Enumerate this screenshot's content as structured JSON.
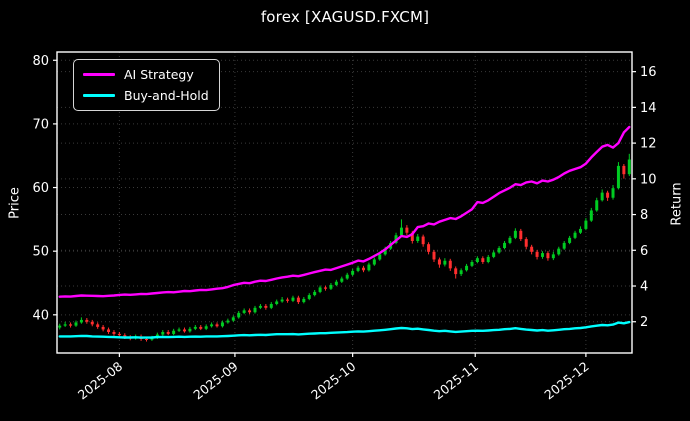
{
  "title": "forex [XAGUSD.FXCM]",
  "legend": {
    "items": [
      {
        "label": "AI Strategy",
        "color": "#ff00ff"
      },
      {
        "label": "Buy-and-Hold",
        "color": "#00ffff"
      }
    ]
  },
  "axes": {
    "left_label": "Price",
    "right_label": "Return"
  },
  "chart_data": {
    "type": "candlestick",
    "title": "forex [XAGUSD.FXCM]",
    "grid": true,
    "legend_position": "upper-left",
    "price_axis": {
      "label": "Price",
      "min": 34.0,
      "max": 81.3,
      "ticks": [
        40,
        50,
        60,
        70,
        80
      ]
    },
    "return_axis": {
      "label": "Return",
      "min": 0.25,
      "max": 17.1,
      "ticks": [
        2,
        4,
        6,
        8,
        10,
        12,
        14,
        16
      ]
    },
    "x_ticks": [
      {
        "label": "2025-08",
        "day": 11
      },
      {
        "label": "2025-09",
        "day": 32.3
      },
      {
        "label": "2025-10",
        "day": 54
      },
      {
        "label": "2025-11",
        "day": 76.6
      },
      {
        "label": "2025-12",
        "day": 97
      }
    ],
    "colors": {
      "up": "#00cc22",
      "down": "#ff2e2e",
      "ai": "#ff00ff",
      "buy_hold": "#00ffff",
      "grid": "#3a3a3a",
      "background": "#000000",
      "foreground": "#ffffff"
    },
    "candles": [
      [
        38.0,
        38.6,
        37.7,
        38.3
      ],
      [
        38.3,
        38.9,
        38.1,
        38.5
      ],
      [
        38.5,
        38.8,
        38.0,
        38.3
      ],
      [
        38.3,
        39.1,
        38.1,
        38.8
      ],
      [
        38.8,
        39.6,
        38.6,
        39.2
      ],
      [
        39.2,
        39.5,
        38.6,
        38.9
      ],
      [
        38.9,
        39.2,
        38.2,
        38.5
      ],
      [
        38.5,
        38.8,
        37.8,
        38.1
      ],
      [
        38.1,
        38.4,
        37.4,
        37.7
      ],
      [
        37.7,
        38.0,
        37.0,
        37.3
      ],
      [
        37.3,
        37.6,
        36.7,
        37.0
      ],
      [
        37.0,
        37.3,
        36.5,
        36.8
      ],
      [
        36.8,
        37.1,
        36.2,
        36.5
      ],
      [
        36.5,
        36.8,
        36.0,
        36.3
      ],
      [
        36.3,
        36.9,
        36.1,
        36.6
      ],
      [
        36.6,
        36.9,
        35.9,
        36.2
      ],
      [
        36.2,
        36.5,
        35.8,
        36.1
      ],
      [
        36.1,
        36.7,
        35.9,
        36.4
      ],
      [
        36.4,
        37.2,
        36.2,
        36.9
      ],
      [
        36.9,
        37.6,
        36.7,
        37.3
      ],
      [
        37.3,
        37.6,
        36.8,
        37.0
      ],
      [
        37.0,
        37.8,
        36.8,
        37.5
      ],
      [
        37.5,
        38.0,
        37.3,
        37.7
      ],
      [
        37.7,
        38.0,
        37.2,
        37.4
      ],
      [
        37.4,
        38.1,
        37.2,
        37.8
      ],
      [
        37.8,
        38.4,
        37.6,
        38.1
      ],
      [
        38.1,
        38.4,
        37.6,
        37.8
      ],
      [
        37.8,
        38.5,
        37.6,
        38.2
      ],
      [
        38.2,
        38.8,
        38.0,
        38.5
      ],
      [
        38.5,
        38.8,
        38.0,
        38.2
      ],
      [
        38.2,
        39.1,
        38.0,
        38.8
      ],
      [
        38.8,
        39.4,
        38.6,
        39.1
      ],
      [
        39.1,
        39.9,
        38.9,
        39.6
      ],
      [
        39.6,
        40.6,
        39.4,
        40.3
      ],
      [
        40.3,
        41.0,
        40.1,
        40.7
      ],
      [
        40.7,
        41.0,
        40.1,
        40.4
      ],
      [
        40.4,
        41.4,
        40.2,
        41.1
      ],
      [
        41.1,
        41.7,
        40.9,
        41.4
      ],
      [
        41.4,
        41.7,
        40.8,
        41.1
      ],
      [
        41.1,
        42.0,
        40.9,
        41.7
      ],
      [
        41.7,
        42.4,
        41.5,
        42.1
      ],
      [
        42.1,
        42.8,
        41.9,
        42.4
      ],
      [
        42.4,
        42.7,
        41.9,
        42.2
      ],
      [
        42.2,
        43.0,
        42.0,
        42.7
      ],
      [
        42.7,
        43.0,
        41.7,
        42.0
      ],
      [
        42.0,
        42.8,
        41.8,
        42.5
      ],
      [
        42.5,
        43.4,
        42.3,
        43.1
      ],
      [
        43.1,
        43.9,
        42.9,
        43.6
      ],
      [
        43.6,
        44.6,
        43.4,
        44.3
      ],
      [
        44.3,
        44.6,
        43.8,
        44.1
      ],
      [
        44.1,
        45.0,
        43.9,
        44.7
      ],
      [
        44.7,
        45.5,
        44.5,
        45.2
      ],
      [
        45.2,
        46.0,
        45.0,
        45.7
      ],
      [
        45.7,
        46.6,
        45.5,
        46.3
      ],
      [
        46.3,
        47.2,
        46.1,
        46.9
      ],
      [
        46.9,
        47.7,
        46.7,
        47.4
      ],
      [
        47.4,
        47.7,
        46.7,
        47.0
      ],
      [
        47.0,
        48.2,
        46.8,
        47.9
      ],
      [
        47.9,
        49.0,
        47.7,
        48.7
      ],
      [
        48.7,
        49.8,
        48.5,
        49.5
      ],
      [
        49.5,
        50.7,
        49.3,
        50.4
      ],
      [
        50.4,
        51.6,
        50.2,
        51.3
      ],
      [
        51.3,
        52.9,
        51.1,
        52.5
      ],
      [
        52.5,
        55.0,
        52.3,
        53.7
      ],
      [
        53.7,
        54.1,
        52.5,
        52.9
      ],
      [
        52.9,
        53.2,
        51.2,
        51.6
      ],
      [
        51.6,
        52.7,
        51.3,
        52.3
      ],
      [
        52.3,
        52.6,
        50.7,
        51.1
      ],
      [
        51.1,
        51.4,
        49.5,
        49.9
      ],
      [
        49.9,
        50.2,
        48.3,
        48.7
      ],
      [
        48.7,
        49.0,
        47.4,
        47.9
      ],
      [
        47.9,
        48.9,
        47.6,
        48.5
      ],
      [
        48.5,
        48.8,
        46.9,
        47.3
      ],
      [
        47.3,
        47.6,
        45.7,
        46.4
      ],
      [
        46.4,
        47.3,
        46.1,
        47.0
      ],
      [
        47.0,
        48.0,
        46.8,
        47.7
      ],
      [
        47.7,
        48.6,
        47.5,
        48.3
      ],
      [
        48.3,
        49.2,
        48.1,
        48.9
      ],
      [
        48.9,
        49.2,
        48.0,
        48.3
      ],
      [
        48.3,
        49.4,
        48.1,
        49.1
      ],
      [
        49.1,
        50.1,
        48.9,
        49.8
      ],
      [
        49.8,
        50.8,
        49.6,
        50.5
      ],
      [
        50.5,
        51.6,
        50.3,
        51.3
      ],
      [
        51.3,
        52.4,
        51.1,
        52.1
      ],
      [
        52.1,
        53.6,
        51.9,
        53.2
      ],
      [
        53.2,
        53.5,
        51.6,
        51.9
      ],
      [
        51.9,
        52.2,
        50.3,
        50.7
      ],
      [
        50.7,
        51.0,
        49.5,
        49.9
      ],
      [
        49.9,
        50.2,
        48.7,
        49.1
      ],
      [
        49.1,
        50.0,
        48.8,
        49.7
      ],
      [
        49.7,
        50.0,
        48.5,
        48.9
      ],
      [
        48.9,
        49.9,
        48.6,
        49.5
      ],
      [
        49.5,
        50.7,
        49.3,
        50.4
      ],
      [
        50.4,
        51.6,
        50.2,
        51.3
      ],
      [
        51.3,
        52.4,
        51.1,
        52.1
      ],
      [
        52.1,
        53.2,
        51.9,
        52.9
      ],
      [
        52.9,
        53.9,
        52.7,
        53.5
      ],
      [
        53.5,
        55.2,
        53.3,
        54.8
      ],
      [
        54.8,
        56.8,
        54.6,
        56.4
      ],
      [
        56.4,
        58.4,
        56.2,
        58.0
      ],
      [
        58.0,
        59.7,
        57.8,
        59.2
      ],
      [
        59.2,
        59.5,
        57.9,
        58.4
      ],
      [
        58.4,
        60.4,
        58.1,
        59.9
      ],
      [
        59.9,
        64.0,
        59.7,
        63.4
      ],
      [
        63.4,
        63.7,
        61.4,
        62.1
      ],
      [
        62.1,
        65.3,
        61.8,
        64.4
      ]
    ],
    "series": [
      {
        "name": "AI Strategy",
        "axis": "return",
        "color": "#ff00ff",
        "values": [
          3.4,
          3.42,
          3.41,
          3.44,
          3.47,
          3.46,
          3.45,
          3.44,
          3.43,
          3.45,
          3.47,
          3.5,
          3.52,
          3.51,
          3.53,
          3.56,
          3.55,
          3.58,
          3.61,
          3.64,
          3.66,
          3.65,
          3.68,
          3.72,
          3.71,
          3.75,
          3.78,
          3.77,
          3.81,
          3.85,
          3.88,
          3.95,
          4.05,
          4.12,
          4.18,
          4.16,
          4.24,
          4.3,
          4.28,
          4.35,
          4.42,
          4.48,
          4.52,
          4.58,
          4.55,
          4.62,
          4.7,
          4.78,
          4.85,
          4.92,
          4.9,
          5.0,
          5.1,
          5.2,
          5.3,
          5.42,
          5.38,
          5.52,
          5.68,
          5.85,
          6.05,
          6.3,
          6.55,
          6.8,
          6.75,
          6.9,
          7.3,
          7.35,
          7.5,
          7.45,
          7.6,
          7.7,
          7.8,
          7.75,
          7.9,
          8.1,
          8.3,
          8.7,
          8.65,
          8.8,
          9.0,
          9.2,
          9.35,
          9.5,
          9.7,
          9.65,
          9.8,
          9.85,
          9.75,
          9.9,
          9.85,
          9.95,
          10.1,
          10.3,
          10.45,
          10.55,
          10.65,
          10.85,
          11.2,
          11.5,
          11.8,
          11.9,
          11.75,
          12.0,
          12.6,
          12.9
        ]
      },
      {
        "name": "Buy-and-Hold",
        "axis": "return",
        "color": "#00ffff",
        "values": [
          1.18,
          1.18,
          1.18,
          1.19,
          1.21,
          1.2,
          1.18,
          1.17,
          1.16,
          1.15,
          1.14,
          1.13,
          1.12,
          1.12,
          1.13,
          1.11,
          1.11,
          1.12,
          1.14,
          1.15,
          1.14,
          1.15,
          1.16,
          1.15,
          1.16,
          1.17,
          1.16,
          1.18,
          1.18,
          1.18,
          1.19,
          1.2,
          1.22,
          1.24,
          1.25,
          1.24,
          1.26,
          1.27,
          1.26,
          1.28,
          1.3,
          1.3,
          1.3,
          1.31,
          1.29,
          1.31,
          1.33,
          1.34,
          1.36,
          1.36,
          1.38,
          1.39,
          1.41,
          1.42,
          1.44,
          1.46,
          1.45,
          1.47,
          1.5,
          1.52,
          1.55,
          1.58,
          1.62,
          1.65,
          1.63,
          1.59,
          1.61,
          1.57,
          1.54,
          1.5,
          1.47,
          1.49,
          1.46,
          1.43,
          1.45,
          1.47,
          1.49,
          1.5,
          1.49,
          1.51,
          1.53,
          1.55,
          1.58,
          1.6,
          1.64,
          1.6,
          1.56,
          1.54,
          1.51,
          1.53,
          1.5,
          1.52,
          1.55,
          1.58,
          1.6,
          1.63,
          1.65,
          1.69,
          1.74,
          1.78,
          1.82,
          1.8,
          1.84,
          1.95,
          1.91,
          1.98
        ]
      }
    ]
  }
}
